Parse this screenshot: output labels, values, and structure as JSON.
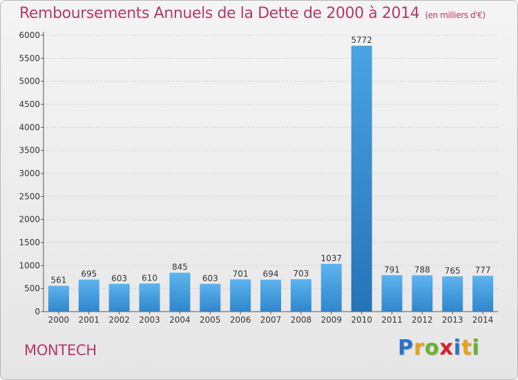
{
  "header": {
    "title": "Remboursements Annuels de la Dette de 2000 à 2014",
    "unit": "(en milliers d'€)"
  },
  "commune": "MONTECH",
  "logo": {
    "letters": [
      "P",
      "r",
      "o",
      "x",
      "i",
      "t",
      "i"
    ]
  },
  "colors": {
    "title": "#b5386a",
    "bar": "#4aa3e3",
    "bar_highlight": "#2f86cc"
  },
  "chart_data": {
    "type": "bar",
    "title": "Remboursements Annuels de la Dette de 2000 à 2014",
    "subtitle": "(en milliers d'€)",
    "categories": [
      "2000",
      "2001",
      "2002",
      "2003",
      "2004",
      "2005",
      "2006",
      "2007",
      "2008",
      "2009",
      "2010",
      "2011",
      "2012",
      "2013",
      "2014"
    ],
    "values": [
      561,
      695,
      603,
      610,
      845,
      603,
      701,
      694,
      703,
      1037,
      5772,
      791,
      788,
      765,
      777
    ],
    "highlight_index": 10,
    "ylim": [
      0,
      6000
    ],
    "yticks": [
      0,
      500,
      1000,
      1500,
      2000,
      2500,
      3000,
      3500,
      4000,
      4500,
      5000,
      5500,
      6000
    ],
    "grid": true,
    "legend": "none"
  }
}
